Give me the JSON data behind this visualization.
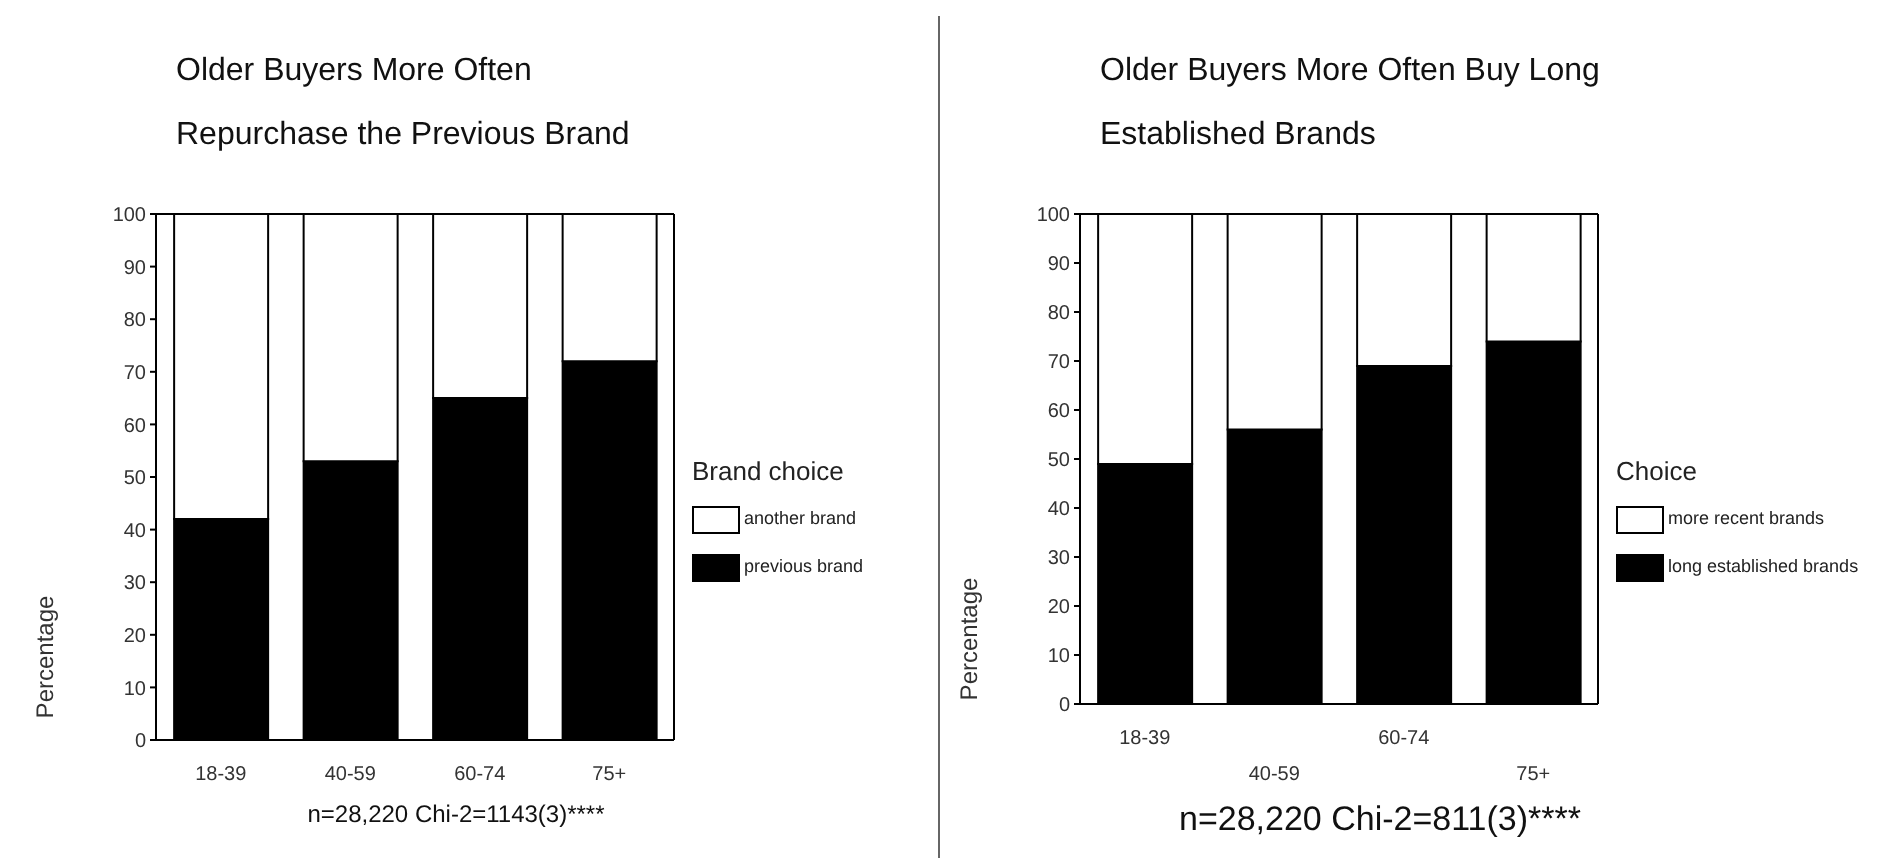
{
  "chart_data": [
    {
      "type": "bar",
      "title": "Older Buyers More Often Repurchase the Previous Brand",
      "ylabel": "Percentage",
      "legend_title": "Brand choice",
      "categories": [
        "18-39",
        "40-59",
        "60-74",
        "75+"
      ],
      "stacked": true,
      "series": [
        {
          "name": "previous brand",
          "color": "#000000",
          "values": [
            42,
            53,
            65,
            72
          ]
        },
        {
          "name": "another brand",
          "color": "#ffffff",
          "values": [
            58,
            47,
            35,
            28
          ]
        }
      ],
      "ylim": [
        0,
        100
      ],
      "yticks": [
        0,
        10,
        20,
        30,
        40,
        50,
        60,
        70,
        80,
        90,
        100
      ],
      "grid": false,
      "legend": "right",
      "annotations": [
        "n=28,220 Chi-2=1143(3)****"
      ]
    },
    {
      "type": "bar",
      "title": "Older Buyers More Often Buy Long Established Brands",
      "ylabel": "Percentage",
      "legend_title": "Choice",
      "categories": [
        "18-39",
        "40-59",
        "60-74",
        "75+"
      ],
      "stacked": true,
      "series": [
        {
          "name": "long established brands",
          "color": "#000000",
          "values": [
            49,
            56,
            69,
            74
          ]
        },
        {
          "name": "more recent brands",
          "color": "#ffffff",
          "values": [
            51,
            44,
            31,
            26
          ]
        }
      ],
      "ylim": [
        0,
        100
      ],
      "yticks": [
        0,
        10,
        20,
        30,
        40,
        50,
        60,
        70,
        80,
        90,
        100
      ],
      "grid": false,
      "legend": "right",
      "annotations": [
        "n=28,220 Chi-2=811(3)****"
      ]
    }
  ]
}
